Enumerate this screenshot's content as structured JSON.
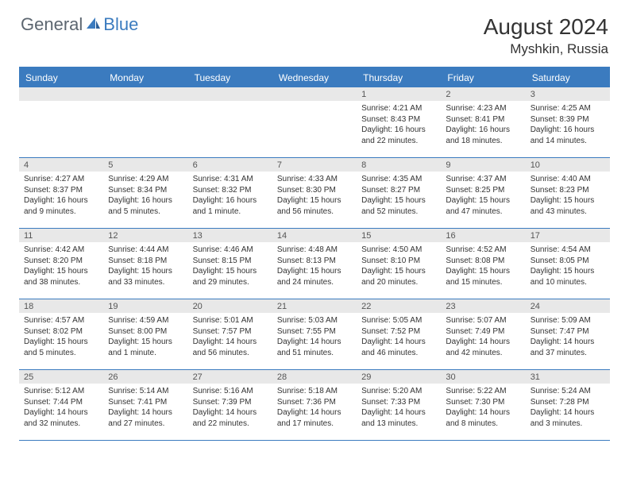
{
  "brand": {
    "g": "General",
    "b": "Blue"
  },
  "title": "August 2024",
  "location": "Myshkin, Russia",
  "colors": {
    "accent": "#3B7BBF",
    "daynum_bg": "#e8e8e8",
    "text": "#333333",
    "header_text": "#5c6670"
  },
  "weekdays": [
    "Sunday",
    "Monday",
    "Tuesday",
    "Wednesday",
    "Thursday",
    "Friday",
    "Saturday"
  ],
  "weeks": [
    [
      {
        "n": "",
        "sr": "",
        "ss": "",
        "dl": ""
      },
      {
        "n": "",
        "sr": "",
        "ss": "",
        "dl": ""
      },
      {
        "n": "",
        "sr": "",
        "ss": "",
        "dl": ""
      },
      {
        "n": "",
        "sr": "",
        "ss": "",
        "dl": ""
      },
      {
        "n": "1",
        "sr": "Sunrise: 4:21 AM",
        "ss": "Sunset: 8:43 PM",
        "dl": "Daylight: 16 hours and 22 minutes."
      },
      {
        "n": "2",
        "sr": "Sunrise: 4:23 AM",
        "ss": "Sunset: 8:41 PM",
        "dl": "Daylight: 16 hours and 18 minutes."
      },
      {
        "n": "3",
        "sr": "Sunrise: 4:25 AM",
        "ss": "Sunset: 8:39 PM",
        "dl": "Daylight: 16 hours and 14 minutes."
      }
    ],
    [
      {
        "n": "4",
        "sr": "Sunrise: 4:27 AM",
        "ss": "Sunset: 8:37 PM",
        "dl": "Daylight: 16 hours and 9 minutes."
      },
      {
        "n": "5",
        "sr": "Sunrise: 4:29 AM",
        "ss": "Sunset: 8:34 PM",
        "dl": "Daylight: 16 hours and 5 minutes."
      },
      {
        "n": "6",
        "sr": "Sunrise: 4:31 AM",
        "ss": "Sunset: 8:32 PM",
        "dl": "Daylight: 16 hours and 1 minute."
      },
      {
        "n": "7",
        "sr": "Sunrise: 4:33 AM",
        "ss": "Sunset: 8:30 PM",
        "dl": "Daylight: 15 hours and 56 minutes."
      },
      {
        "n": "8",
        "sr": "Sunrise: 4:35 AM",
        "ss": "Sunset: 8:27 PM",
        "dl": "Daylight: 15 hours and 52 minutes."
      },
      {
        "n": "9",
        "sr": "Sunrise: 4:37 AM",
        "ss": "Sunset: 8:25 PM",
        "dl": "Daylight: 15 hours and 47 minutes."
      },
      {
        "n": "10",
        "sr": "Sunrise: 4:40 AM",
        "ss": "Sunset: 8:23 PM",
        "dl": "Daylight: 15 hours and 43 minutes."
      }
    ],
    [
      {
        "n": "11",
        "sr": "Sunrise: 4:42 AM",
        "ss": "Sunset: 8:20 PM",
        "dl": "Daylight: 15 hours and 38 minutes."
      },
      {
        "n": "12",
        "sr": "Sunrise: 4:44 AM",
        "ss": "Sunset: 8:18 PM",
        "dl": "Daylight: 15 hours and 33 minutes."
      },
      {
        "n": "13",
        "sr": "Sunrise: 4:46 AM",
        "ss": "Sunset: 8:15 PM",
        "dl": "Daylight: 15 hours and 29 minutes."
      },
      {
        "n": "14",
        "sr": "Sunrise: 4:48 AM",
        "ss": "Sunset: 8:13 PM",
        "dl": "Daylight: 15 hours and 24 minutes."
      },
      {
        "n": "15",
        "sr": "Sunrise: 4:50 AM",
        "ss": "Sunset: 8:10 PM",
        "dl": "Daylight: 15 hours and 20 minutes."
      },
      {
        "n": "16",
        "sr": "Sunrise: 4:52 AM",
        "ss": "Sunset: 8:08 PM",
        "dl": "Daylight: 15 hours and 15 minutes."
      },
      {
        "n": "17",
        "sr": "Sunrise: 4:54 AM",
        "ss": "Sunset: 8:05 PM",
        "dl": "Daylight: 15 hours and 10 minutes."
      }
    ],
    [
      {
        "n": "18",
        "sr": "Sunrise: 4:57 AM",
        "ss": "Sunset: 8:02 PM",
        "dl": "Daylight: 15 hours and 5 minutes."
      },
      {
        "n": "19",
        "sr": "Sunrise: 4:59 AM",
        "ss": "Sunset: 8:00 PM",
        "dl": "Daylight: 15 hours and 1 minute."
      },
      {
        "n": "20",
        "sr": "Sunrise: 5:01 AM",
        "ss": "Sunset: 7:57 PM",
        "dl": "Daylight: 14 hours and 56 minutes."
      },
      {
        "n": "21",
        "sr": "Sunrise: 5:03 AM",
        "ss": "Sunset: 7:55 PM",
        "dl": "Daylight: 14 hours and 51 minutes."
      },
      {
        "n": "22",
        "sr": "Sunrise: 5:05 AM",
        "ss": "Sunset: 7:52 PM",
        "dl": "Daylight: 14 hours and 46 minutes."
      },
      {
        "n": "23",
        "sr": "Sunrise: 5:07 AM",
        "ss": "Sunset: 7:49 PM",
        "dl": "Daylight: 14 hours and 42 minutes."
      },
      {
        "n": "24",
        "sr": "Sunrise: 5:09 AM",
        "ss": "Sunset: 7:47 PM",
        "dl": "Daylight: 14 hours and 37 minutes."
      }
    ],
    [
      {
        "n": "25",
        "sr": "Sunrise: 5:12 AM",
        "ss": "Sunset: 7:44 PM",
        "dl": "Daylight: 14 hours and 32 minutes."
      },
      {
        "n": "26",
        "sr": "Sunrise: 5:14 AM",
        "ss": "Sunset: 7:41 PM",
        "dl": "Daylight: 14 hours and 27 minutes."
      },
      {
        "n": "27",
        "sr": "Sunrise: 5:16 AM",
        "ss": "Sunset: 7:39 PM",
        "dl": "Daylight: 14 hours and 22 minutes."
      },
      {
        "n": "28",
        "sr": "Sunrise: 5:18 AM",
        "ss": "Sunset: 7:36 PM",
        "dl": "Daylight: 14 hours and 17 minutes."
      },
      {
        "n": "29",
        "sr": "Sunrise: 5:20 AM",
        "ss": "Sunset: 7:33 PM",
        "dl": "Daylight: 14 hours and 13 minutes."
      },
      {
        "n": "30",
        "sr": "Sunrise: 5:22 AM",
        "ss": "Sunset: 7:30 PM",
        "dl": "Daylight: 14 hours and 8 minutes."
      },
      {
        "n": "31",
        "sr": "Sunrise: 5:24 AM",
        "ss": "Sunset: 7:28 PM",
        "dl": "Daylight: 14 hours and 3 minutes."
      }
    ]
  ]
}
